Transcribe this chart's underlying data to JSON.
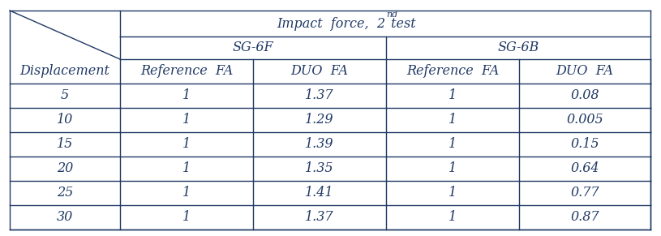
{
  "col_header_1": "SG-6F",
  "col_header_2": "SG-6B",
  "sub_headers": [
    "Displacement",
    "Reference  FA",
    "DUO  FA",
    "Reference  FA",
    "DUO  FA"
  ],
  "rows": [
    [
      "5",
      "1",
      "1.37",
      "1",
      "0.08"
    ],
    [
      "10",
      "1",
      "1.29",
      "1",
      "0.005"
    ],
    [
      "15",
      "1",
      "1.39",
      "1",
      "0.15"
    ],
    [
      "20",
      "1",
      "1.35",
      "1",
      "0.64"
    ],
    [
      "25",
      "1",
      "1.41",
      "1",
      "0.77"
    ],
    [
      "30",
      "1",
      "1.37",
      "1",
      "0.87"
    ]
  ],
  "text_color": "#1F3864",
  "line_color": "#1F3864",
  "bg_color": "#ffffff",
  "font_size": 11.5
}
